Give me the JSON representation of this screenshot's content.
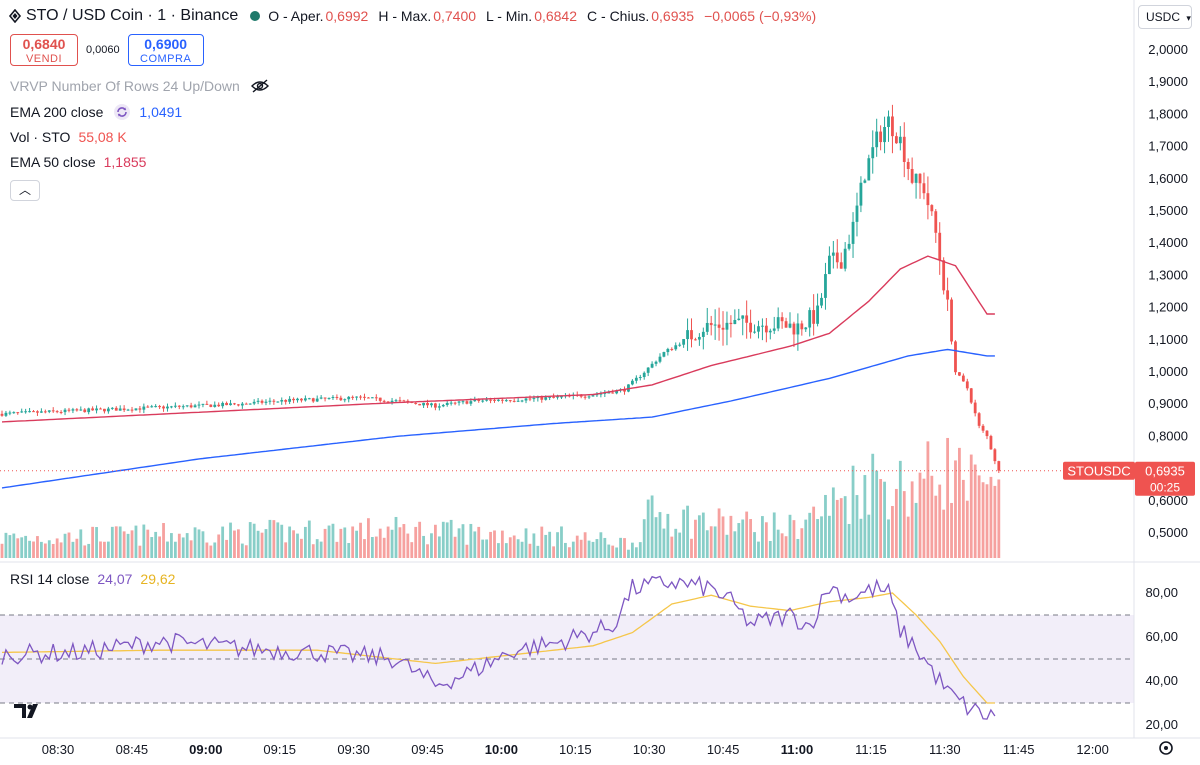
{
  "header": {
    "symbol": "STO / USD Coin · 1 · Binance",
    "open_label": "O - Aper.",
    "open": "0,6992",
    "high_label": "H - Max.",
    "high": "0,7400",
    "low_label": "L - Min.",
    "low": "0,6842",
    "close_label": "C - Chius.",
    "close": "0,6935",
    "change": "−0,0065 (−0,93%)"
  },
  "trade": {
    "sell_price": "0,6840",
    "sell_label": "VENDI",
    "spread": "0,0060",
    "buy_price": "0,6900",
    "buy_label": "COMPRA"
  },
  "indicators": {
    "vrvp": "VRVP Number Of Rows 24 Up/Down",
    "ema200_label": "EMA 200 close",
    "ema200_value": "1,0491",
    "vol_label": "Vol · STO",
    "vol_value": "55,08 K",
    "ema50_label": "EMA 50 close",
    "ema50_value": "1,1855",
    "rsi_label": "RSI 14 close",
    "rsi_value": "24,07",
    "rsi_ma_value": "29,62"
  },
  "currency": "USDC",
  "price_tag": {
    "symbol": "STOUSDC",
    "price": "0,6935",
    "countdown": "00:25"
  },
  "colors": {
    "up": "#26a69a",
    "down": "#ef5350",
    "ema200": "#2962ff",
    "ema50": "#d93b5c",
    "rsi": "#7e57c2",
    "rsi_ma": "#f5c64a",
    "rsi_band": "#ede7f6"
  },
  "chart_data": {
    "type": "candlestick",
    "x_ticks": [
      "08:30",
      "08:45",
      "09:00",
      "09:15",
      "09:30",
      "09:45",
      "10:00",
      "10:15",
      "10:30",
      "10:45",
      "11:00",
      "11:15",
      "11:30",
      "11:45",
      "12:00"
    ],
    "bold_ticks": [
      "09:00",
      "10:00",
      "11:00"
    ],
    "y_ticks": [
      "2,0000",
      "1,9000",
      "1,8000",
      "1,7000",
      "1,6000",
      "1,5000",
      "1,4000",
      "1,3000",
      "1,2000",
      "1,1000",
      "1,0000",
      "0,9000",
      "0,8000",
      "0,7000",
      "0,6000",
      "0,5000"
    ],
    "ylim": [
      0.45,
      2.04
    ],
    "rsi_ticks": [
      "80,00",
      "60,00",
      "40,00",
      "20,00"
    ],
    "rsi_bands": [
      30,
      50,
      70
    ],
    "price_anchors": [
      [
        0,
        0.87
      ],
      [
        10,
        0.875
      ],
      [
        20,
        0.88
      ],
      [
        30,
        0.885
      ],
      [
        40,
        0.89
      ],
      [
        50,
        0.895
      ],
      [
        60,
        0.9
      ],
      [
        70,
        0.91
      ],
      [
        80,
        0.915
      ],
      [
        90,
        0.92
      ],
      [
        100,
        0.91
      ],
      [
        110,
        0.895
      ],
      [
        120,
        0.91
      ],
      [
        130,
        0.915
      ],
      [
        140,
        0.92
      ],
      [
        150,
        0.93
      ],
      [
        158,
        0.945
      ],
      [
        163,
        1.0
      ],
      [
        168,
        1.06
      ],
      [
        172,
        1.09
      ],
      [
        178,
        1.14
      ],
      [
        185,
        1.15
      ],
      [
        195,
        1.15
      ],
      [
        202,
        1.14
      ],
      [
        207,
        1.18
      ],
      [
        210,
        1.34
      ],
      [
        213,
        1.35
      ],
      [
        216,
        1.45
      ],
      [
        219,
        1.62
      ],
      [
        222,
        1.72
      ],
      [
        225,
        1.78
      ],
      [
        228,
        1.72
      ],
      [
        231,
        1.6
      ],
      [
        234,
        1.57
      ],
      [
        237,
        1.43
      ],
      [
        240,
        1.2
      ],
      [
        242,
        1.0
      ],
      [
        245,
        0.95
      ],
      [
        248,
        0.83
      ],
      [
        250,
        0.8
      ],
      [
        253,
        0.69
      ]
    ],
    "ema50_anchors": [
      [
        0,
        0.845
      ],
      [
        50,
        0.875
      ],
      [
        100,
        0.905
      ],
      [
        150,
        0.93
      ],
      [
        165,
        0.96
      ],
      [
        180,
        1.02
      ],
      [
        200,
        1.08
      ],
      [
        210,
        1.12
      ],
      [
        220,
        1.22
      ],
      [
        228,
        1.32
      ],
      [
        235,
        1.36
      ],
      [
        242,
        1.33
      ],
      [
        250,
        1.18
      ]
    ],
    "ema200_anchors": [
      [
        0,
        0.64
      ],
      [
        50,
        0.73
      ],
      [
        100,
        0.8
      ],
      [
        140,
        0.84
      ],
      [
        165,
        0.86
      ],
      [
        185,
        0.91
      ],
      [
        210,
        0.98
      ],
      [
        230,
        1.05
      ],
      [
        240,
        1.07
      ],
      [
        250,
        1.05
      ]
    ],
    "volume_anchors": [
      [
        0,
        0.2
      ],
      [
        60,
        0.25
      ],
      [
        100,
        0.28
      ],
      [
        140,
        0.22
      ],
      [
        160,
        0.15
      ],
      [
        165,
        0.45
      ],
      [
        180,
        0.35
      ],
      [
        200,
        0.3
      ],
      [
        210,
        0.5
      ],
      [
        220,
        0.8
      ],
      [
        230,
        0.7
      ],
      [
        240,
        0.9
      ],
      [
        250,
        0.6
      ]
    ],
    "rsi_anchors": [
      [
        0,
        52
      ],
      [
        20,
        53
      ],
      [
        40,
        58
      ],
      [
        60,
        55
      ],
      [
        80,
        53
      ],
      [
        100,
        50
      ],
      [
        110,
        38
      ],
      [
        120,
        45
      ],
      [
        130,
        54
      ],
      [
        140,
        57
      ],
      [
        155,
        65
      ],
      [
        160,
        82
      ],
      [
        170,
        85
      ],
      [
        180,
        82
      ],
      [
        185,
        76
      ],
      [
        190,
        66
      ],
      [
        200,
        70
      ],
      [
        205,
        65
      ],
      [
        210,
        83
      ],
      [
        215,
        78
      ],
      [
        222,
        82
      ],
      [
        225,
        80
      ],
      [
        228,
        63
      ],
      [
        232,
        55
      ],
      [
        236,
        45
      ],
      [
        240,
        35
      ],
      [
        245,
        28
      ],
      [
        250,
        24
      ]
    ],
    "rsi_ma_anchors": [
      [
        0,
        53
      ],
      [
        40,
        54
      ],
      [
        80,
        54
      ],
      [
        110,
        48
      ],
      [
        130,
        52
      ],
      [
        150,
        56
      ],
      [
        160,
        62
      ],
      [
        170,
        75
      ],
      [
        180,
        79
      ],
      [
        190,
        74
      ],
      [
        200,
        72
      ],
      [
        210,
        76
      ],
      [
        220,
        78
      ],
      [
        226,
        80
      ],
      [
        232,
        70
      ],
      [
        238,
        58
      ],
      [
        244,
        42
      ],
      [
        250,
        30
      ]
    ],
    "last_rsi": 24.07,
    "last_rsi_ma": 29.62
  }
}
